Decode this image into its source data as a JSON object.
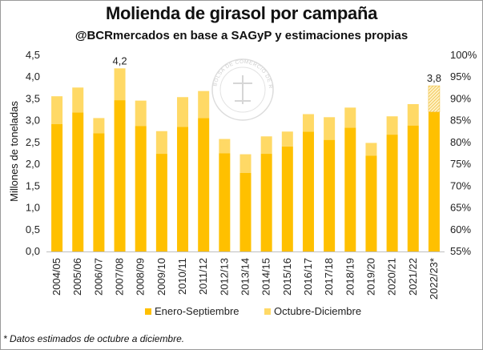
{
  "chart_data": {
    "type": "bar",
    "stacked": true,
    "title": "Molienda de girasol por campaña",
    "subtitle": "@BCRmercados en base a SAGyP y estimaciones propias",
    "ylabel": "Millones de toneladas",
    "ylim": [
      0,
      4.5
    ],
    "y_ticks": [
      "0,0",
      "0,5",
      "1,0",
      "1,5",
      "2,0",
      "2,5",
      "3,0",
      "3,5",
      "4,0",
      "4,5"
    ],
    "y2lim": [
      0.55,
      1.0
    ],
    "y2_ticks": [
      "55%",
      "60%",
      "65%",
      "70%",
      "75%",
      "80%",
      "85%",
      "90%",
      "95%",
      "100%"
    ],
    "grid": false,
    "legend_position": "bottom",
    "categories": [
      "2004/05",
      "2005/06",
      "2006/07",
      "2007/08",
      "2008/09",
      "2009/10",
      "2010/11",
      "2011/12",
      "2012/13",
      "2013/14",
      "2014/15",
      "2015/16",
      "2016/17",
      "2017/18",
      "2018/19",
      "2019/20",
      "2020/21",
      "2021/22",
      "2022/23*"
    ],
    "series": [
      {
        "name": "Enero-Septiembre",
        "color": "#FFC000",
        "values": [
          2.92,
          3.19,
          2.71,
          3.47,
          2.88,
          2.24,
          2.86,
          3.06,
          2.25,
          1.8,
          2.24,
          2.41,
          2.75,
          2.56,
          2.84,
          2.2,
          2.68,
          2.89,
          3.2
        ]
      },
      {
        "name": "Octubre-Diciembre",
        "color": "#FFD966",
        "values": [
          0.64,
          0.57,
          0.35,
          0.73,
          0.58,
          0.52,
          0.68,
          0.62,
          0.33,
          0.43,
          0.4,
          0.34,
          0.4,
          0.52,
          0.46,
          0.29,
          0.42,
          0.49,
          0.6
        ]
      }
    ],
    "data_labels": [
      {
        "category": "2007/08",
        "text": "4,2"
      },
      {
        "category": "2022/23*",
        "text": "3,8"
      }
    ],
    "estimated_category": "2022/23*",
    "watermark": "BOLSA DE COMERCIO DE ROSARIO"
  },
  "footnote": "* Datos estimados de octubre a diciembre."
}
